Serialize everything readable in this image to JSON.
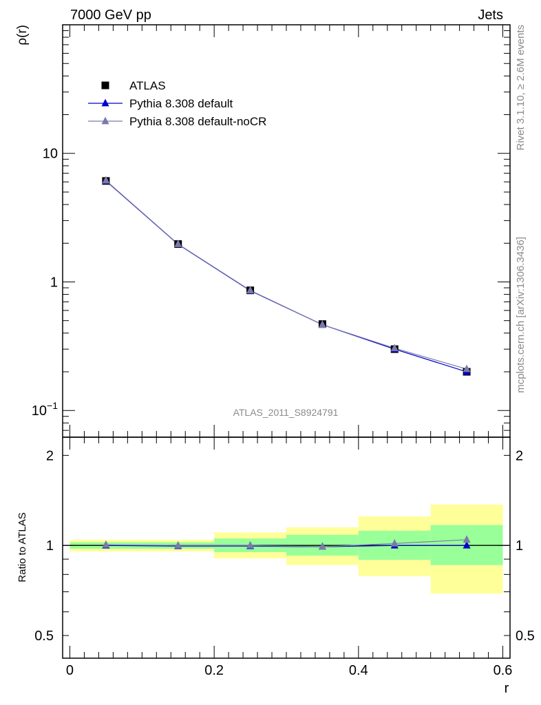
{
  "header": {
    "left": "7000 GeV pp",
    "right": "Jets"
  },
  "side": {
    "rivet": "Rivet 3.1.10, ≥ 2.6M events",
    "mcplots": "mcplots.cern.ch [arXiv:1306.3436]"
  },
  "chart_data": [
    {
      "type": "line",
      "scale": "log-y",
      "ylabel": "ρ(r)",
      "annotation": "ATLAS_2011_S8924791",
      "ylim": [
        0.062,
        100
      ],
      "yticks": [
        {
          "value": 0.1,
          "base": "10",
          "exp": "−1"
        },
        {
          "value": 1,
          "label": "1"
        },
        {
          "value": 10,
          "label": "10"
        }
      ],
      "legend": {
        "placement": "top-left",
        "entries": [
          "ATLAS",
          "Pythia 8.308 default",
          "Pythia 8.308 default-noCR"
        ]
      },
      "x": [
        0.05,
        0.15,
        0.25,
        0.35,
        0.45,
        0.55
      ],
      "series": [
        {
          "name": "ATLAS",
          "marker": "square",
          "color": "#000000",
          "values": [
            6.1,
            1.97,
            0.86,
            0.47,
            0.3,
            0.2
          ]
        },
        {
          "name": "Pythia 8.308 default",
          "marker": "triangle",
          "color": "#0000cc",
          "values": [
            6.1,
            1.96,
            0.855,
            0.465,
            0.3,
            0.2
          ]
        },
        {
          "name": "Pythia 8.308 default-noCR",
          "marker": "triangle",
          "color": "#7a7aaa",
          "values": [
            6.15,
            1.97,
            0.86,
            0.465,
            0.305,
            0.21
          ]
        }
      ]
    },
    {
      "type": "line",
      "scale": "log-y",
      "ylabel": "Ratio to ATLAS",
      "xlabel": "r",
      "xlim": [
        -0.01,
        0.61
      ],
      "ylim": [
        0.42,
        2.3
      ],
      "xticks": [
        0,
        0.2,
        0.4,
        0.6
      ],
      "xtick_labels": [
        "0",
        "0.2",
        "0.4",
        "0.6"
      ],
      "yticks": [
        0.5,
        1,
        2
      ],
      "ytick_labels": [
        "0.5",
        "1",
        "2"
      ],
      "bands": {
        "x_edges": [
          0,
          0.1,
          0.2,
          0.3,
          0.4,
          0.5,
          0.6
        ],
        "stat": {
          "color": "#99ff99",
          "lo": [
            0.975,
            0.975,
            0.95,
            0.925,
            0.895,
            0.86
          ],
          "hi": [
            1.025,
            1.025,
            1.055,
            1.085,
            1.12,
            1.17
          ]
        },
        "total": {
          "color": "#ffff99",
          "lo": [
            0.955,
            0.955,
            0.905,
            0.86,
            0.79,
            0.69
          ],
          "hi": [
            1.045,
            1.045,
            1.105,
            1.15,
            1.25,
            1.37
          ]
        }
      },
      "series": [
        {
          "name": "Pythia 8.308 default",
          "color": "#0000cc",
          "values": [
            1.0,
            0.995,
            0.995,
            0.99,
            1.0,
            1.0
          ]
        },
        {
          "name": "Pythia 8.308 default-noCR",
          "color": "#7a7aaa",
          "values": [
            1.005,
            1.0,
            1.0,
            0.99,
            1.015,
            1.045
          ]
        }
      ]
    }
  ]
}
